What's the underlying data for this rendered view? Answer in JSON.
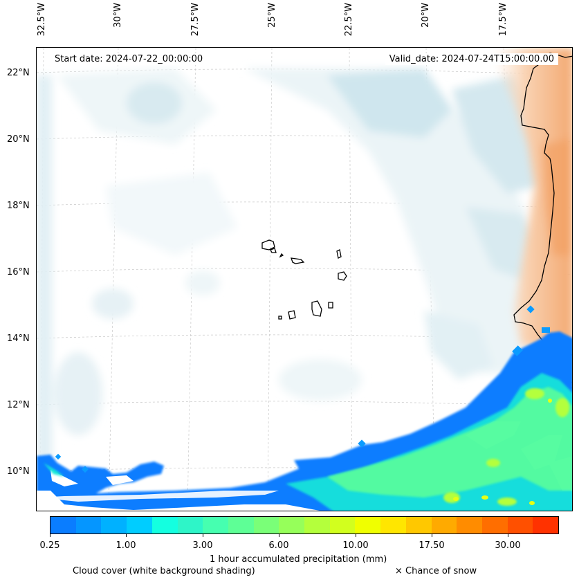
{
  "map": {
    "start_label": "Start date: 2024-07-22_00:00:00",
    "valid_label": "Valid_date: 2024-07-24T15:00:00.00",
    "lon_labels": [
      "32.5°W",
      "30°W",
      "27.5°W",
      "25°W",
      "22.5°W",
      "20°W",
      "17.5°W"
    ],
    "lat_labels": [
      "22°N",
      "20°N",
      "18°N",
      "16°N",
      "14°N",
      "12°N",
      "10°N"
    ]
  },
  "colorbar": {
    "tick_labels": [
      "0.25",
      "1.00",
      "3.00",
      "6.00",
      "10.00",
      "17.50",
      "30.00"
    ],
    "colors": [
      "#0a7dff",
      "#0596ff",
      "#00b1ff",
      "#00cdff",
      "#14ffe0",
      "#2ef5c8",
      "#46ffb0",
      "#5eff96",
      "#7aff78",
      "#96ff5a",
      "#b4ff3c",
      "#d2ff1e",
      "#f0ff00",
      "#ffe600",
      "#ffc800",
      "#ffaa00",
      "#ff8c00",
      "#ff6e00",
      "#ff5000",
      "#ff3200"
    ],
    "label": "1 hour accumulated precipitation (mm)"
  },
  "legend": {
    "cloud_cover": "Cloud cover (white background shading)",
    "snow": "× Chance of snow"
  }
}
